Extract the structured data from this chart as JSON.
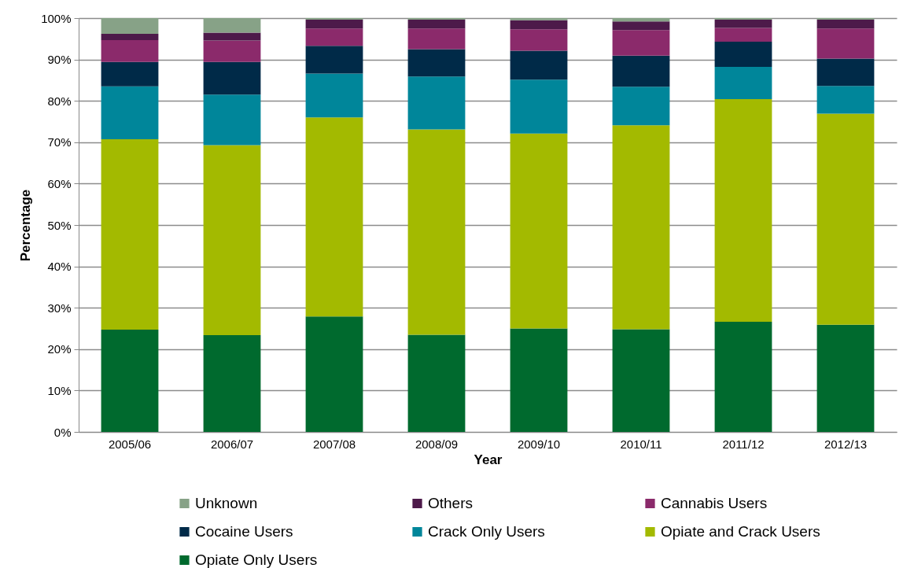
{
  "chart_data": {
    "type": "bar",
    "stacked": true,
    "xlabel": "Year",
    "ylabel": "Percentage",
    "categories": [
      "2005/06",
      "2006/07",
      "2007/08",
      "2008/09",
      "2009/10",
      "2010/11",
      "2011/12",
      "2012/13"
    ],
    "ylim": [
      0,
      100
    ],
    "yticks": [
      {
        "value": 0,
        "label": "0%"
      },
      {
        "value": 10,
        "label": "10%"
      },
      {
        "value": 20,
        "label": "20%"
      },
      {
        "value": 30,
        "label": "30%"
      },
      {
        "value": 40,
        "label": "40%"
      },
      {
        "value": 50,
        "label": "50%"
      },
      {
        "value": 60,
        "label": "60%"
      },
      {
        "value": 70,
        "label": "70%"
      },
      {
        "value": 80,
        "label": "80%"
      },
      {
        "value": 90,
        "label": "90%"
      },
      {
        "value": 100,
        "label": "100%"
      }
    ],
    "grid": "y",
    "legend": "bottom",
    "series": [
      {
        "name": "Opiate Only Users",
        "color": "#006a2e",
        "values": [
          24.7,
          23.4,
          27.9,
          23.5,
          25.0,
          24.8,
          26.6,
          25.9
        ]
      },
      {
        "name": "Opiate and Crack Users",
        "color": "#a3ba00",
        "values": [
          46.0,
          45.9,
          48.1,
          49.6,
          47.1,
          49.3,
          53.8,
          51.0
        ]
      },
      {
        "name": "Crack Only Users",
        "color": "#00869a",
        "values": [
          12.8,
          12.2,
          10.6,
          12.8,
          13.0,
          9.3,
          7.8,
          6.7
        ]
      },
      {
        "name": "Cocaine Users",
        "color": "#002a48",
        "values": [
          5.9,
          7.9,
          6.7,
          6.6,
          7.0,
          7.5,
          6.1,
          6.6
        ]
      },
      {
        "name": "Cannabis Users",
        "color": "#8b2a6b",
        "values": [
          5.3,
          5.2,
          4.2,
          5.0,
          5.2,
          6.2,
          3.3,
          7.3
        ]
      },
      {
        "name": "Others",
        "color": "#4d1a4a",
        "values": [
          1.5,
          1.9,
          2.1,
          2.1,
          2.2,
          2.1,
          2.0,
          2.1
        ]
      },
      {
        "name": "Unknown",
        "color": "#87a287",
        "values": [
          3.8,
          3.5,
          0.4,
          0.4,
          0.5,
          0.8,
          0.4,
          0.4
        ]
      }
    ]
  }
}
